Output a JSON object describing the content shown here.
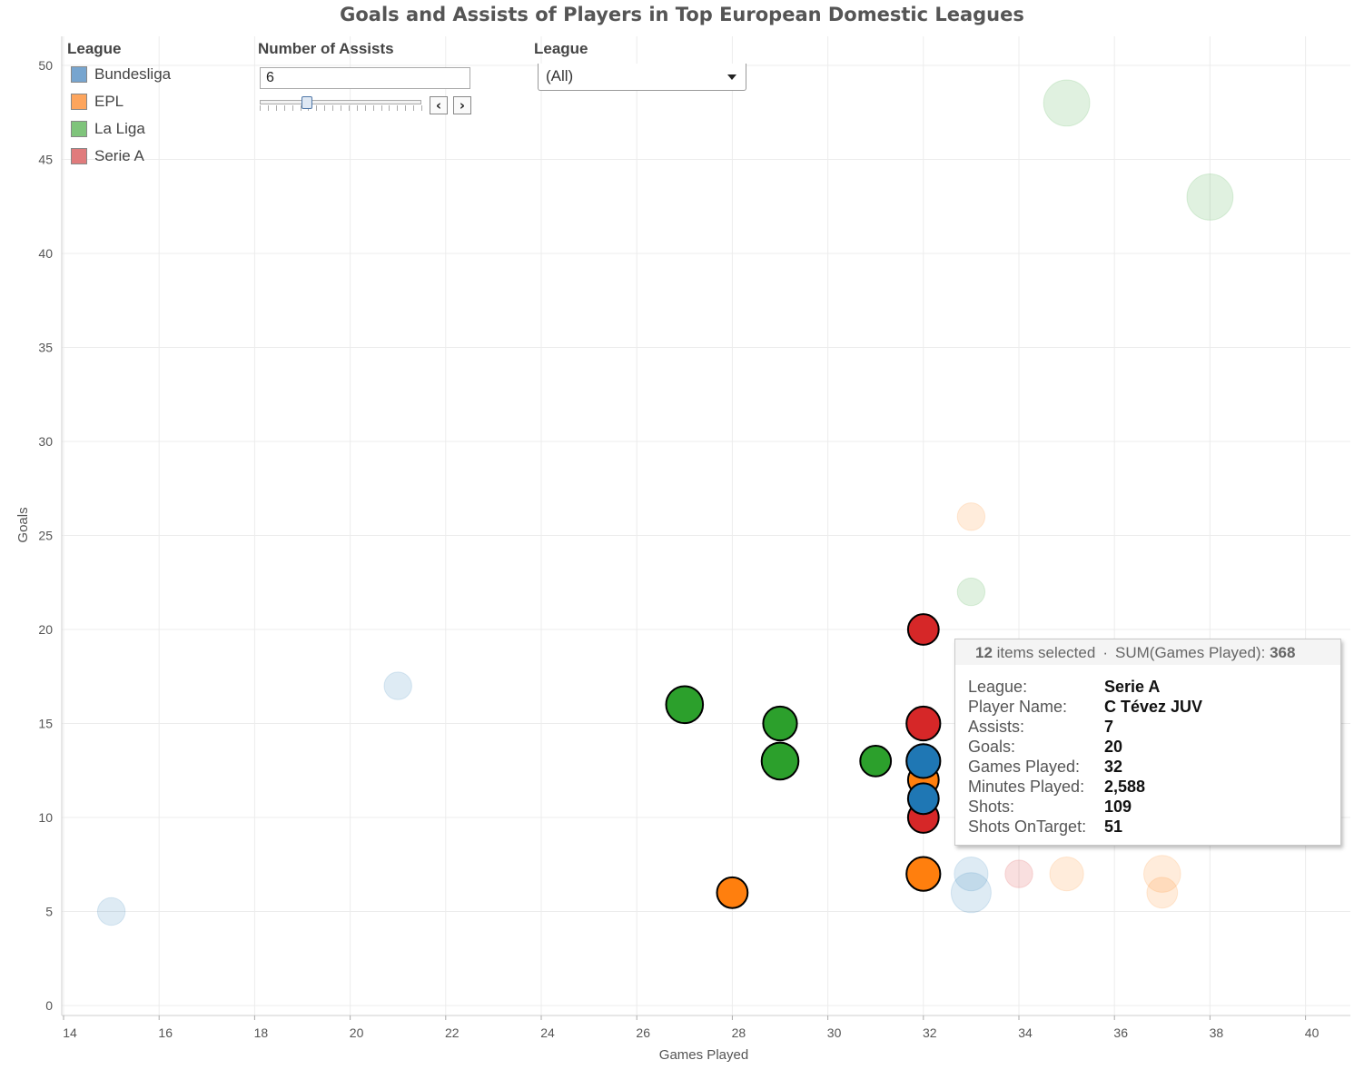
{
  "title": "Goals and Assists of Players in Top European Domestic Leagues",
  "legend": {
    "title": "League",
    "items": [
      {
        "label": "Bundesliga",
        "color": "#77a5cf"
      },
      {
        "label": "EPL",
        "color": "#fda55d"
      },
      {
        "label": "La Liga",
        "color": "#7fc47b"
      },
      {
        "label": "Serie A",
        "color": "#e07b7c"
      }
    ]
  },
  "assist_filter": {
    "title": "Number of Assists",
    "value": "6",
    "prev_icon": "chevron-left-icon",
    "next_icon": "chevron-right-icon"
  },
  "league_filter": {
    "title": "League",
    "selected": "(All)"
  },
  "tooltip": {
    "count": "12",
    "count_suffix": "items selected",
    "sum_label": "SUM(Games Played):",
    "sum_value": "368",
    "rows": [
      {
        "key": "League:",
        "value": "Serie A"
      },
      {
        "key": "Player Name:",
        "value": "C Tévez JUV"
      },
      {
        "key": "Assists:",
        "value": "7"
      },
      {
        "key": "Goals:",
        "value": "20"
      },
      {
        "key": "Games Played:",
        "value": "32"
      },
      {
        "key": "Minutes Played:",
        "value": "2,588"
      },
      {
        "key": "Shots:",
        "value": "109"
      },
      {
        "key": "Shots OnTarget:",
        "value": "51"
      }
    ]
  },
  "chart_data": {
    "type": "scatter",
    "title": "Goals and Assists of Players in Top European Domestic Leagues",
    "xlabel": "Games Played",
    "ylabel": "Goals",
    "xlim": [
      14,
      41
    ],
    "ylim": [
      0,
      51
    ],
    "xticks": [
      14,
      16,
      18,
      20,
      22,
      24,
      26,
      28,
      30,
      32,
      34,
      36,
      38,
      40
    ],
    "yticks": [
      0,
      5,
      10,
      15,
      20,
      25,
      30,
      35,
      40,
      45,
      50
    ],
    "grid": true,
    "legend_position": "top-left",
    "colors": {
      "Bundesliga": "#1f77b4",
      "EPL": "#ff7f0e",
      "La Liga": "#2ca02c",
      "Serie A": "#d62728"
    },
    "size_encoding": "Number of Assists",
    "points": [
      {
        "league": "La Liga",
        "x": 27,
        "y": 16,
        "assists": 9,
        "selected": true
      },
      {
        "league": "La Liga",
        "x": 29,
        "y": 15,
        "assists": 8,
        "selected": true
      },
      {
        "league": "La Liga",
        "x": 29,
        "y": 13,
        "assists": 9,
        "selected": true
      },
      {
        "league": "La Liga",
        "x": 31,
        "y": 13,
        "assists": 7,
        "selected": true
      },
      {
        "league": "EPL",
        "x": 28,
        "y": 6,
        "assists": 7,
        "selected": true
      },
      {
        "league": "EPL",
        "x": 32,
        "y": 7,
        "assists": 8,
        "selected": true
      },
      {
        "league": "EPL",
        "x": 32,
        "y": 12,
        "assists": 7,
        "selected": true
      },
      {
        "league": "Serie A",
        "x": 32,
        "y": 20,
        "assists": 7,
        "selected": true
      },
      {
        "league": "Serie A",
        "x": 32,
        "y": 15,
        "assists": 8,
        "selected": true
      },
      {
        "league": "Serie A",
        "x": 32,
        "y": 10,
        "assists": 7,
        "selected": true
      },
      {
        "league": "Bundesliga",
        "x": 32,
        "y": 13,
        "assists": 8,
        "selected": true
      },
      {
        "league": "Bundesliga",
        "x": 32,
        "y": 11,
        "assists": 7,
        "selected": true
      },
      {
        "league": "Bundesliga",
        "x": 15,
        "y": 5,
        "assists": 6,
        "selected": false
      },
      {
        "league": "Bundesliga",
        "x": 21,
        "y": 17,
        "assists": 6,
        "selected": false
      },
      {
        "league": "La Liga",
        "x": 35,
        "y": 48,
        "assists": 12,
        "selected": false
      },
      {
        "league": "La Liga",
        "x": 38,
        "y": 43,
        "assists": 12,
        "selected": false
      },
      {
        "league": "EPL",
        "x": 33,
        "y": 26,
        "assists": 6,
        "selected": false
      },
      {
        "league": "La Liga",
        "x": 33,
        "y": 22,
        "assists": 6,
        "selected": false
      },
      {
        "league": "Bundesliga",
        "x": 33,
        "y": 7,
        "assists": 8,
        "selected": false
      },
      {
        "league": "Bundesliga",
        "x": 33,
        "y": 6,
        "assists": 10,
        "selected": false
      },
      {
        "league": "Serie A",
        "x": 34,
        "y": 7,
        "assists": 6,
        "selected": false
      },
      {
        "league": "EPL",
        "x": 35,
        "y": 7,
        "assists": 8,
        "selected": false
      },
      {
        "league": "EPL",
        "x": 37,
        "y": 7,
        "assists": 9,
        "selected": false
      },
      {
        "league": "EPL",
        "x": 37,
        "y": 6,
        "assists": 7,
        "selected": false
      }
    ]
  }
}
